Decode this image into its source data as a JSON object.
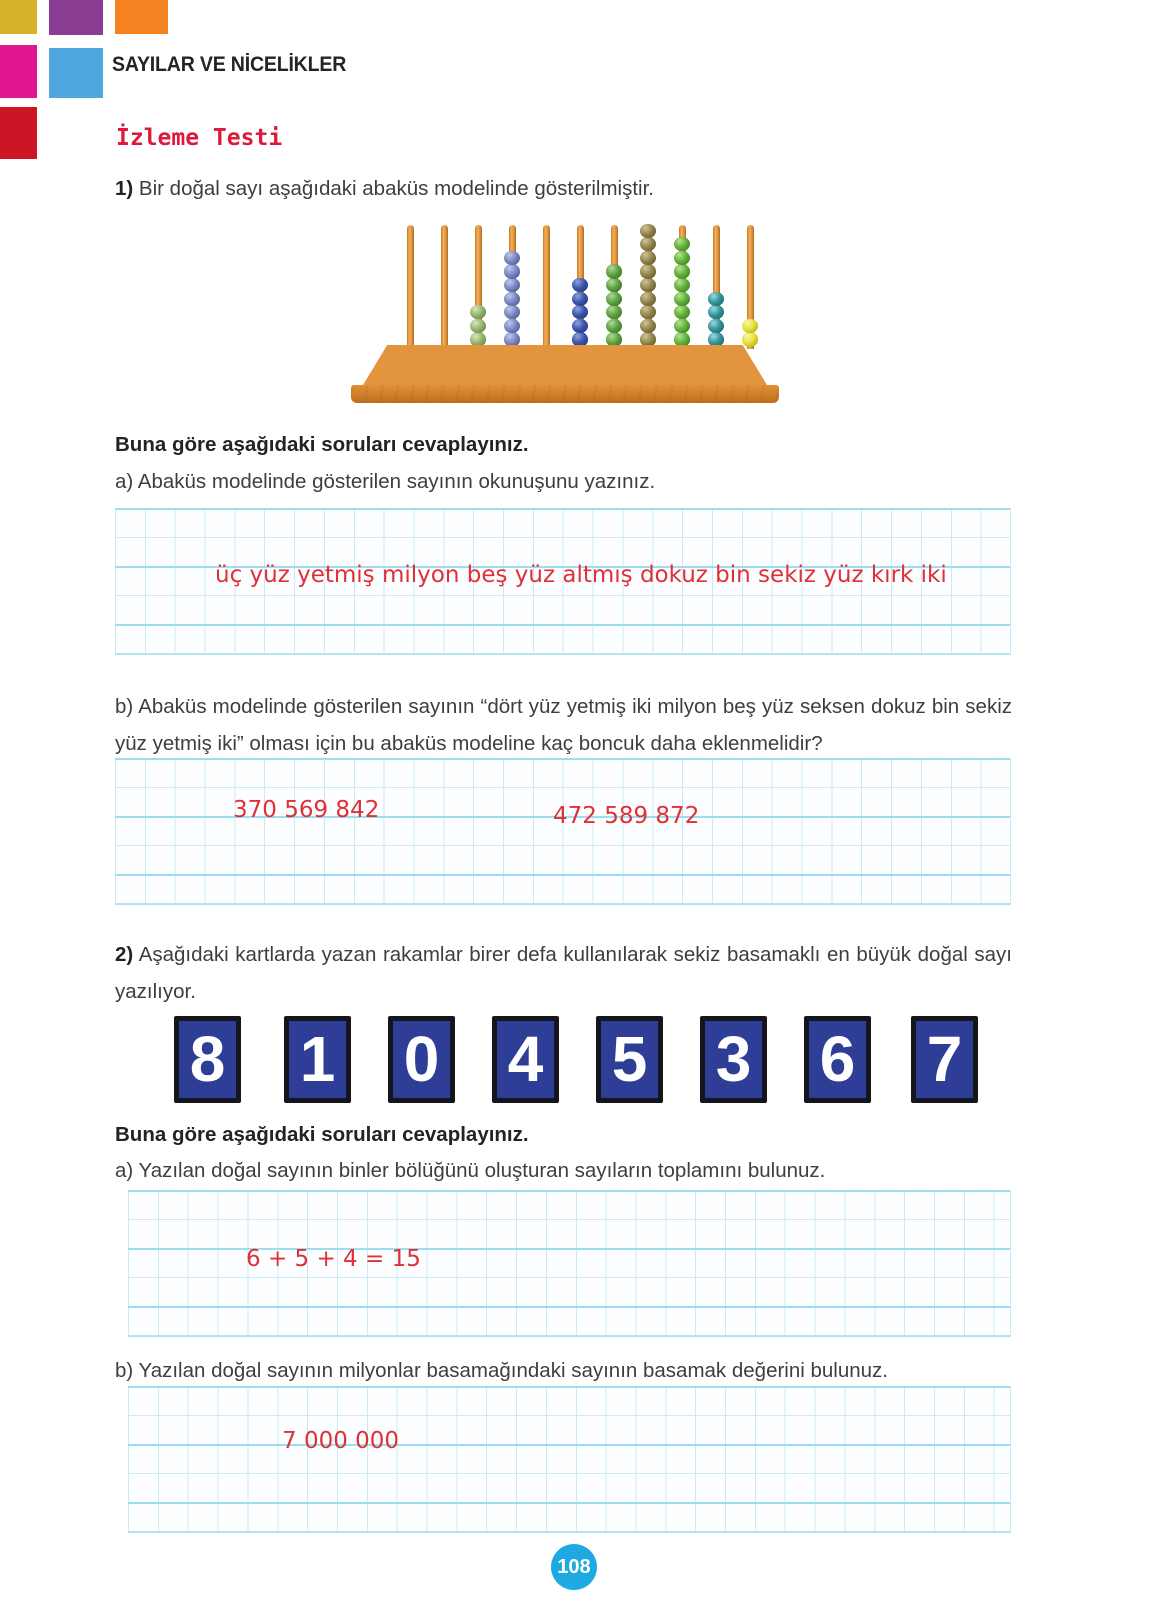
{
  "header": {
    "unit_title": "SAYILAR VE NİCELİKLER",
    "test_title": "İzleme Testi",
    "corner_colors": {
      "gold": "#d7b228",
      "purple": "#8a3d93",
      "orange": "#f58220",
      "magenta": "#e21690",
      "blue": "#4fa8dd",
      "red": "#cc1626"
    }
  },
  "q1": {
    "label": "1)",
    "text": " Bir doğal sayı aşağıdaki abaküs modelinde gösterilmiştir.",
    "prompt": "Buna göre aşağıdaki soruları cevaplayınız.",
    "a_text": "a) Abaküs modelinde gösterilen sayının okunuşunu yazınız.",
    "a_answer": "üç yüz yetmiş milyon beş yüz altmış dokuz bin sekiz yüz kırk iki",
    "b_text": "b) Abaküs modelinde gösterilen sayının “dört yüz yetmiş iki milyon beş yüz seksen dokuz bin sekiz yüz yetmiş iki” olması için bu abaküs modeline kaç boncuk daha eklenmelidir?",
    "b_answer_1": "370 569 842",
    "b_answer_2": "472 589 872"
  },
  "abacus": {
    "rods": [
      {
        "count": 0,
        "color": ""
      },
      {
        "count": 0,
        "color": ""
      },
      {
        "count": 3,
        "color": "light-green"
      },
      {
        "count": 7,
        "color": "periwinkle"
      },
      {
        "count": 0,
        "color": ""
      },
      {
        "count": 5,
        "color": "dark-blue"
      },
      {
        "count": 6,
        "color": "green"
      },
      {
        "count": 9,
        "color": "olive"
      },
      {
        "count": 8,
        "color": "bright-green"
      },
      {
        "count": 4,
        "color": "teal"
      },
      {
        "count": 2,
        "color": "yellow"
      }
    ],
    "bead_colors": {
      "light-green": "#96b571",
      "periwinkle": "#7b88c4",
      "dark-blue": "#3b55ab",
      "green": "#5fa344",
      "olive": "#93864d",
      "bright-green": "#63b23c",
      "teal": "#35959c",
      "yellow": "#e8e13a"
    },
    "wood_color": "#e2943e"
  },
  "q2": {
    "label": "2)",
    "text": " Aşağıdaki kartlarda yazan rakamlar birer defa kullanılarak sekiz basamaklı en büyük doğal sayı yazılıyor.",
    "cards": [
      "8",
      "1",
      "0",
      "4",
      "5",
      "3",
      "6",
      "7"
    ],
    "card_color": "#2e3e96",
    "prompt": "Buna göre aşağıdaki soruları cevaplayınız.",
    "a_text": "a) Yazılan doğal sayının binler bölüğünü oluşturan sayıların toplamını bulunuz.",
    "a_answer": "6 + 5 + 4 = 15",
    "b_text": "b) Yazılan doğal sayının milyonlar basamağındaki sayının basamak değerini bulunuz.",
    "b_answer": "7 000 000"
  },
  "footer": {
    "page_number": "108",
    "badge_color": "#1ea9e3"
  },
  "grid_colors": {
    "thin_line": "#c9eaf6",
    "thick_line": "#9edcef"
  },
  "answer_color": "#df3038"
}
